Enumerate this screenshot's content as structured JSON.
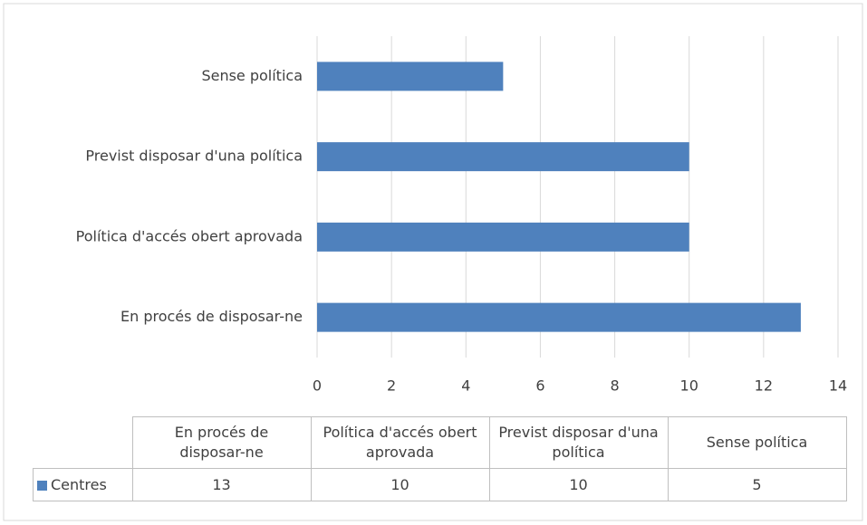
{
  "chart_data": {
    "type": "bar",
    "orientation": "horizontal",
    "categories": [
      "En procés de disposar-ne",
      "Política d'accés obert aprovada",
      "Previst disposar d'una política",
      "Sense política"
    ],
    "series": [
      {
        "name": "Centres",
        "color": "#4f81bd",
        "values": [
          13,
          10,
          10,
          5
        ]
      }
    ],
    "xlim": [
      0,
      14
    ],
    "xticks": [
      0,
      2,
      4,
      6,
      8,
      10,
      12,
      14
    ],
    "grid": true,
    "data_table": true
  }
}
